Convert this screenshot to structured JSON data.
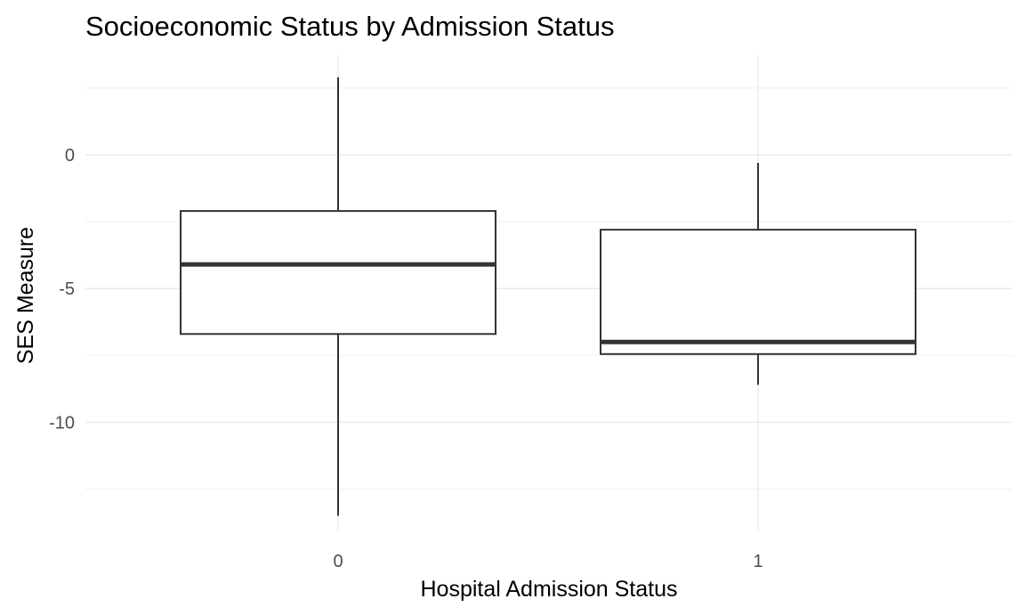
{
  "chart_data": {
    "type": "boxplot",
    "title": "Socioeconomic Status by Admission Status",
    "xlabel": "Hospital Admission Status",
    "ylabel": "SES Measure",
    "categories": [
      "0",
      "1"
    ],
    "boxes": [
      {
        "category": "0",
        "min": -13.5,
        "q1": -6.7,
        "median": -4.1,
        "q3": -2.1,
        "max": 2.9
      },
      {
        "category": "1",
        "min": -8.6,
        "q1": -7.45,
        "median": -7.0,
        "q3": -2.8,
        "max": -0.3
      }
    ],
    "y_ticks": [
      0,
      -5,
      -10
    ],
    "y_tick_labels": [
      "0",
      "-5",
      "-10"
    ],
    "ylim": [
      -14.2,
      3.6
    ],
    "grid": true,
    "legend": "none"
  }
}
